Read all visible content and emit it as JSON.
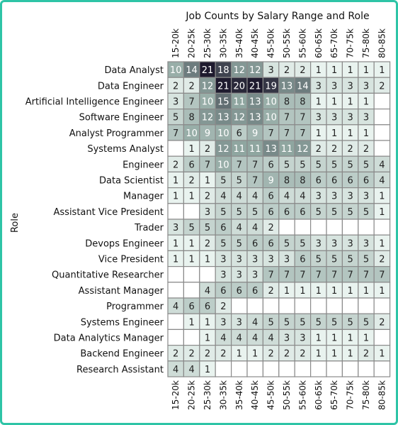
{
  "chart_data": {
    "type": "heatmap",
    "title": "Job Counts by Salary Range and Role",
    "ylabel": "Role",
    "xlabel": "",
    "x": [
      "15-20k",
      "20-25k",
      "25-30k",
      "30-35k",
      "35-40k",
      "40-45k",
      "45-50k",
      "50-55k",
      "55-60k",
      "60-65k",
      "65-70k",
      "70-75k",
      "75-80k",
      "80-85k"
    ],
    "y": [
      "Data Analyst",
      "Data Engineer",
      "Artificial Intelligence Engineer",
      "Software Engineer",
      "Analyst Programmer",
      "Systems Analyst",
      "Engineer",
      "Data Scientist",
      "Manager",
      "Assistant Vice President",
      "Trader",
      "Devops Engineer",
      "Vice President",
      "Quantitative Researcher",
      "Assistant Manager",
      "Programmer",
      "Systems Engineer",
      "Data Analytics Manager",
      "Backend Engineer",
      "Research Assistant"
    ],
    "values": [
      [
        10,
        14,
        21,
        18,
        12,
        12,
        3,
        2,
        2,
        1,
        1,
        1,
        1,
        1
      ],
      [
        2,
        2,
        12,
        21,
        20,
        21,
        19,
        13,
        14,
        3,
        3,
        3,
        3,
        2
      ],
      [
        3,
        7,
        10,
        15,
        11,
        13,
        10,
        8,
        8,
        1,
        1,
        1,
        1,
        null
      ],
      [
        5,
        8,
        12,
        13,
        12,
        13,
        10,
        7,
        7,
        3,
        3,
        3,
        3,
        null
      ],
      [
        7,
        10,
        9,
        10,
        6,
        9,
        7,
        7,
        7,
        1,
        1,
        1,
        1,
        null
      ],
      [
        null,
        1,
        2,
        12,
        11,
        11,
        13,
        11,
        12,
        2,
        2,
        2,
        2,
        null
      ],
      [
        2,
        6,
        7,
        10,
        7,
        7,
        6,
        5,
        5,
        5,
        5,
        5,
        5,
        4
      ],
      [
        1,
        2,
        1,
        5,
        5,
        7,
        9,
        8,
        8,
        6,
        6,
        6,
        6,
        4
      ],
      [
        1,
        1,
        2,
        4,
        4,
        4,
        6,
        4,
        4,
        3,
        3,
        3,
        3,
        1
      ],
      [
        null,
        null,
        3,
        5,
        5,
        5,
        6,
        6,
        6,
        5,
        5,
        5,
        5,
        1
      ],
      [
        3,
        5,
        5,
        6,
        4,
        4,
        2,
        null,
        null,
        null,
        null,
        null,
        null,
        null
      ],
      [
        1,
        1,
        2,
        5,
        5,
        6,
        6,
        5,
        5,
        3,
        3,
        3,
        3,
        1
      ],
      [
        1,
        1,
        1,
        3,
        3,
        3,
        3,
        3,
        6,
        5,
        5,
        5,
        5,
        2
      ],
      [
        null,
        null,
        null,
        3,
        3,
        3,
        7,
        7,
        7,
        7,
        7,
        7,
        7,
        7
      ],
      [
        null,
        null,
        4,
        6,
        6,
        6,
        2,
        1,
        1,
        1,
        1,
        1,
        1,
        1
      ],
      [
        4,
        6,
        6,
        2,
        null,
        null,
        null,
        null,
        null,
        null,
        null,
        null,
        null,
        null
      ],
      [
        null,
        1,
        1,
        3,
        3,
        4,
        5,
        5,
        5,
        5,
        5,
        5,
        5,
        2
      ],
      [
        null,
        null,
        1,
        4,
        4,
        4,
        4,
        3,
        3,
        1,
        1,
        1,
        1,
        null
      ],
      [
        2,
        2,
        2,
        2,
        1,
        1,
        2,
        2,
        2,
        1,
        1,
        1,
        2,
        1
      ],
      [
        4,
        4,
        1,
        null,
        null,
        null,
        null,
        null,
        null,
        null,
        null,
        null,
        null,
        null
      ]
    ],
    "value_range": [
      1,
      21
    ],
    "colors": {
      "low": "#e9f3ef",
      "mid": "#8fa6a0",
      "high": "#1e1a2e",
      "empty": "#ffffff",
      "cell_border": "#8a8a8a",
      "text_dark": "#222222",
      "text_light": "#ffffff",
      "frame": "#2ec4a6"
    },
    "legend": "none",
    "grid": true
  }
}
